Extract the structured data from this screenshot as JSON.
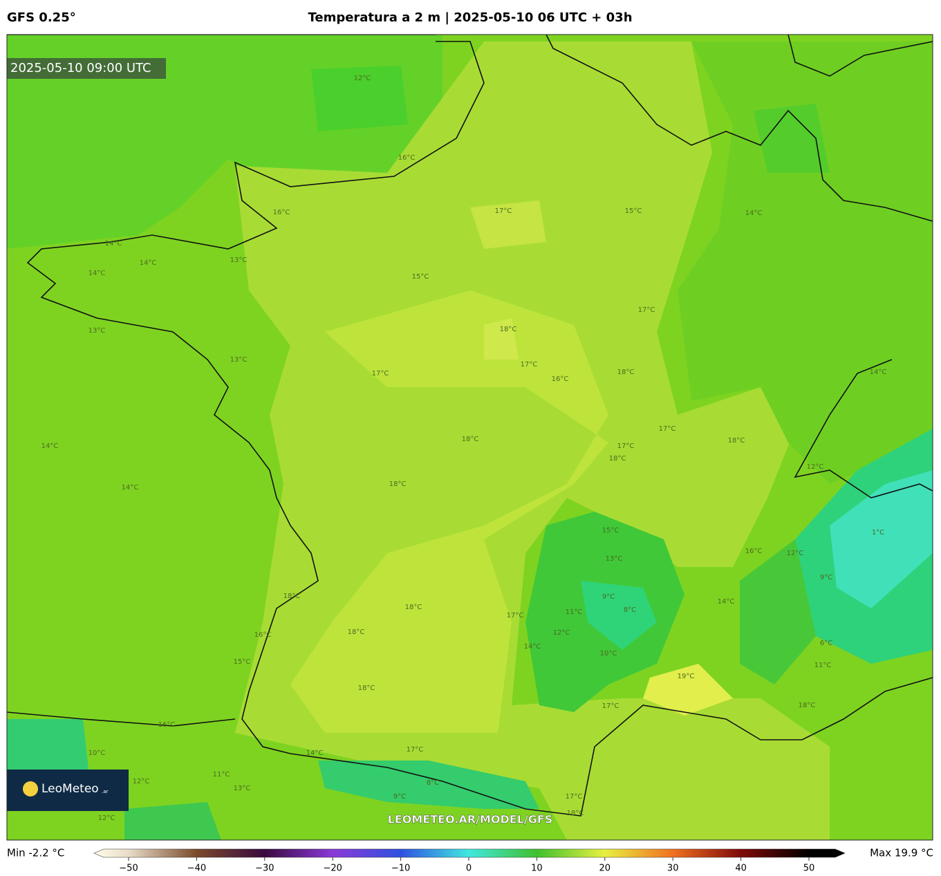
{
  "header": {
    "model": "GFS 0.25°",
    "title": "Temperatura a 2 m | 2025-05-10 06 UTC + 03h"
  },
  "map": {
    "valid_time": "2025-05-10 09:00 UTC",
    "watermark": "LEOMETEO.AR/MODEL/GFS",
    "logo": "LeoMeteo",
    "logo_suffix": ".ar",
    "contour_labels": [
      "12°C",
      "16°C",
      "17°C",
      "16°C",
      "15°C",
      "14°C",
      "14°C",
      "14°C",
      "14°C",
      "13°C",
      "15°C",
      "17°C",
      "18°C",
      "13°C",
      "13°C",
      "17°C",
      "17°C",
      "16°C",
      "18°C",
      "14°C",
      "17°C",
      "18°C",
      "18°C",
      "17°C",
      "18°C",
      "14°C",
      "14°C",
      "18°C",
      "15°C",
      "16°C",
      "13°C",
      "9°C",
      "8°C",
      "18°C",
      "18°C",
      "17°C",
      "11°C",
      "18°C",
      "16°C",
      "12°C",
      "14°C",
      "10°C",
      "15°C",
      "11°C",
      "19°C",
      "18°C",
      "17°C",
      "18°C",
      "16°C",
      "10°C",
      "14°C",
      "17°C",
      "12°C",
      "11°C",
      "13°C",
      "9°C",
      "8°C",
      "17°C",
      "18°C",
      "12°C",
      "12°C",
      "14°C",
      "12°C",
      "9°C",
      "6°C",
      "1°C"
    ]
  },
  "colorbar": {
    "min_label": "Min -2.2 °C",
    "max_label": "Max 19.9 °C",
    "ticks": [
      {
        "value": -50,
        "label": "−50"
      },
      {
        "value": -40,
        "label": "−40"
      },
      {
        "value": -30,
        "label": "−30"
      },
      {
        "value": -20,
        "label": "−20"
      },
      {
        "value": -10,
        "label": "−10"
      },
      0,
      10,
      20,
      30,
      40,
      50
    ]
  }
}
